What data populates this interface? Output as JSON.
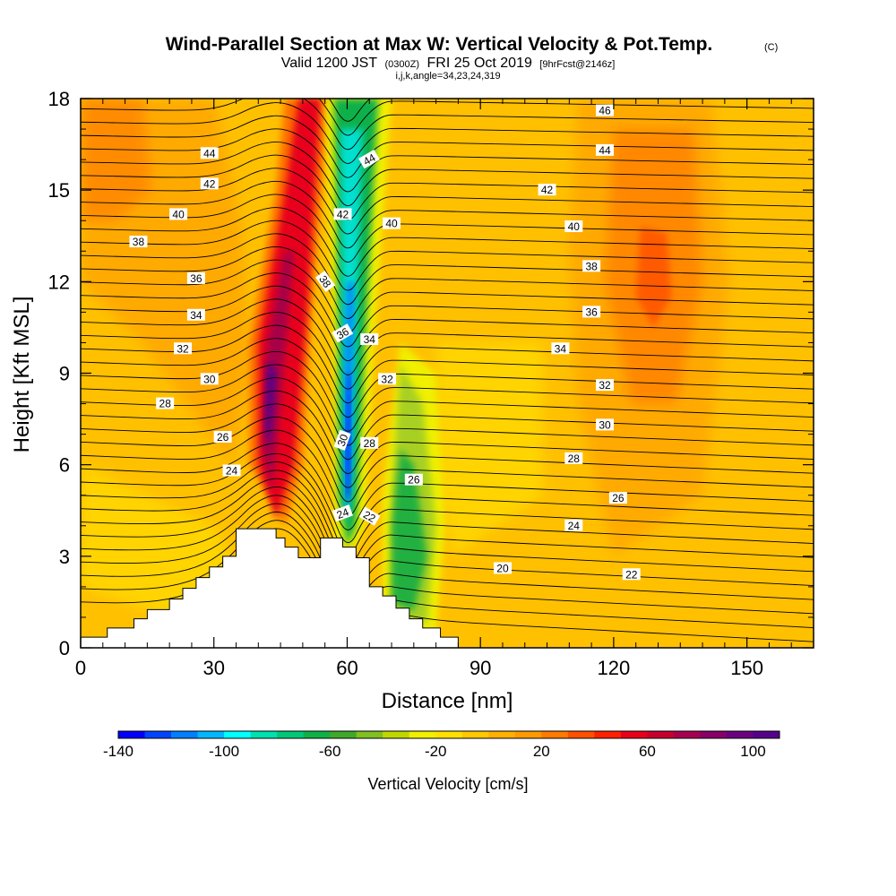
{
  "chart_data": {
    "type": "heatmap",
    "title": "Wind-Parallel Section at Max W: Vertical Velocity & Pot.Temp.",
    "title_mark": "(C)",
    "subtitle_valid": "Valid 1200 JST",
    "subtitle_utc": "(0300Z)",
    "subtitle_date": "FRI 25 Oct 2019",
    "subtitle_fcst": "[9hrFcst@2146z]",
    "subtitle_ijk": "i,j,k,angle=34,23,24,319",
    "xlabel": "Distance [nm]",
    "ylabel": "Height [Kft MSL]",
    "xlim": [
      0,
      165
    ],
    "ylim": [
      0,
      18
    ],
    "x_ticks": [
      "0",
      "30",
      "60",
      "90",
      "120",
      "150"
    ],
    "y_ticks": [
      "0",
      "3",
      "6",
      "9",
      "12",
      "15",
      "18"
    ],
    "colorbar": {
      "label": "Vertical Velocity [cm/s]",
      "range": [
        -140,
        110
      ],
      "tick_labels": [
        "-140",
        "-100",
        "-60",
        "-20",
        "20",
        "60",
        "100"
      ],
      "tick_values": [
        -140,
        -100,
        -60,
        -20,
        20,
        60,
        100
      ],
      "colors": [
        "#0000ff",
        "#0044ff",
        "#0080ff",
        "#00b8ff",
        "#00ffff",
        "#00e0b0",
        "#00c878",
        "#10b048",
        "#40a828",
        "#80c020",
        "#c0d800",
        "#f0f000",
        "#ffe000",
        "#ffc800",
        "#ffb000",
        "#ff9a00",
        "#ff7a00",
        "#ff5000",
        "#ff2000",
        "#e8001a",
        "#c8002e",
        "#a80050",
        "#880068",
        "#6a0080",
        "#55008a"
      ]
    },
    "theta_contours": {
      "unit": "°C",
      "left_labels": [
        "44",
        "42",
        "40",
        "38",
        "36",
        "34",
        "32",
        "30",
        "28",
        "26",
        "24"
      ],
      "center_labels": [
        "44",
        "42",
        "40",
        "38",
        "36",
        "34",
        "32",
        "30",
        "28",
        "26",
        "24",
        "22"
      ],
      "right_labels": [
        "46",
        "44",
        "42",
        "40",
        "38",
        "36",
        "34",
        "32",
        "30",
        "28",
        "26",
        "24",
        "22",
        "20"
      ]
    },
    "features": [
      {
        "name": "updraft",
        "x_nm": 42,
        "max_cm_s": 110,
        "height_kft": [
          4,
          18
        ]
      },
      {
        "name": "downdraft",
        "x_nm": 59,
        "min_cm_s": -140,
        "height_kft": [
          3,
          18
        ]
      },
      {
        "name": "secondary downdraft",
        "x_nm": 74,
        "min_cm_s": -60,
        "height_kft": [
          0.5,
          9
        ]
      },
      {
        "name": "upper level updraft",
        "x_nm": 128,
        "max_cm_s": 50,
        "height_kft": [
          10,
          14
        ]
      }
    ]
  }
}
